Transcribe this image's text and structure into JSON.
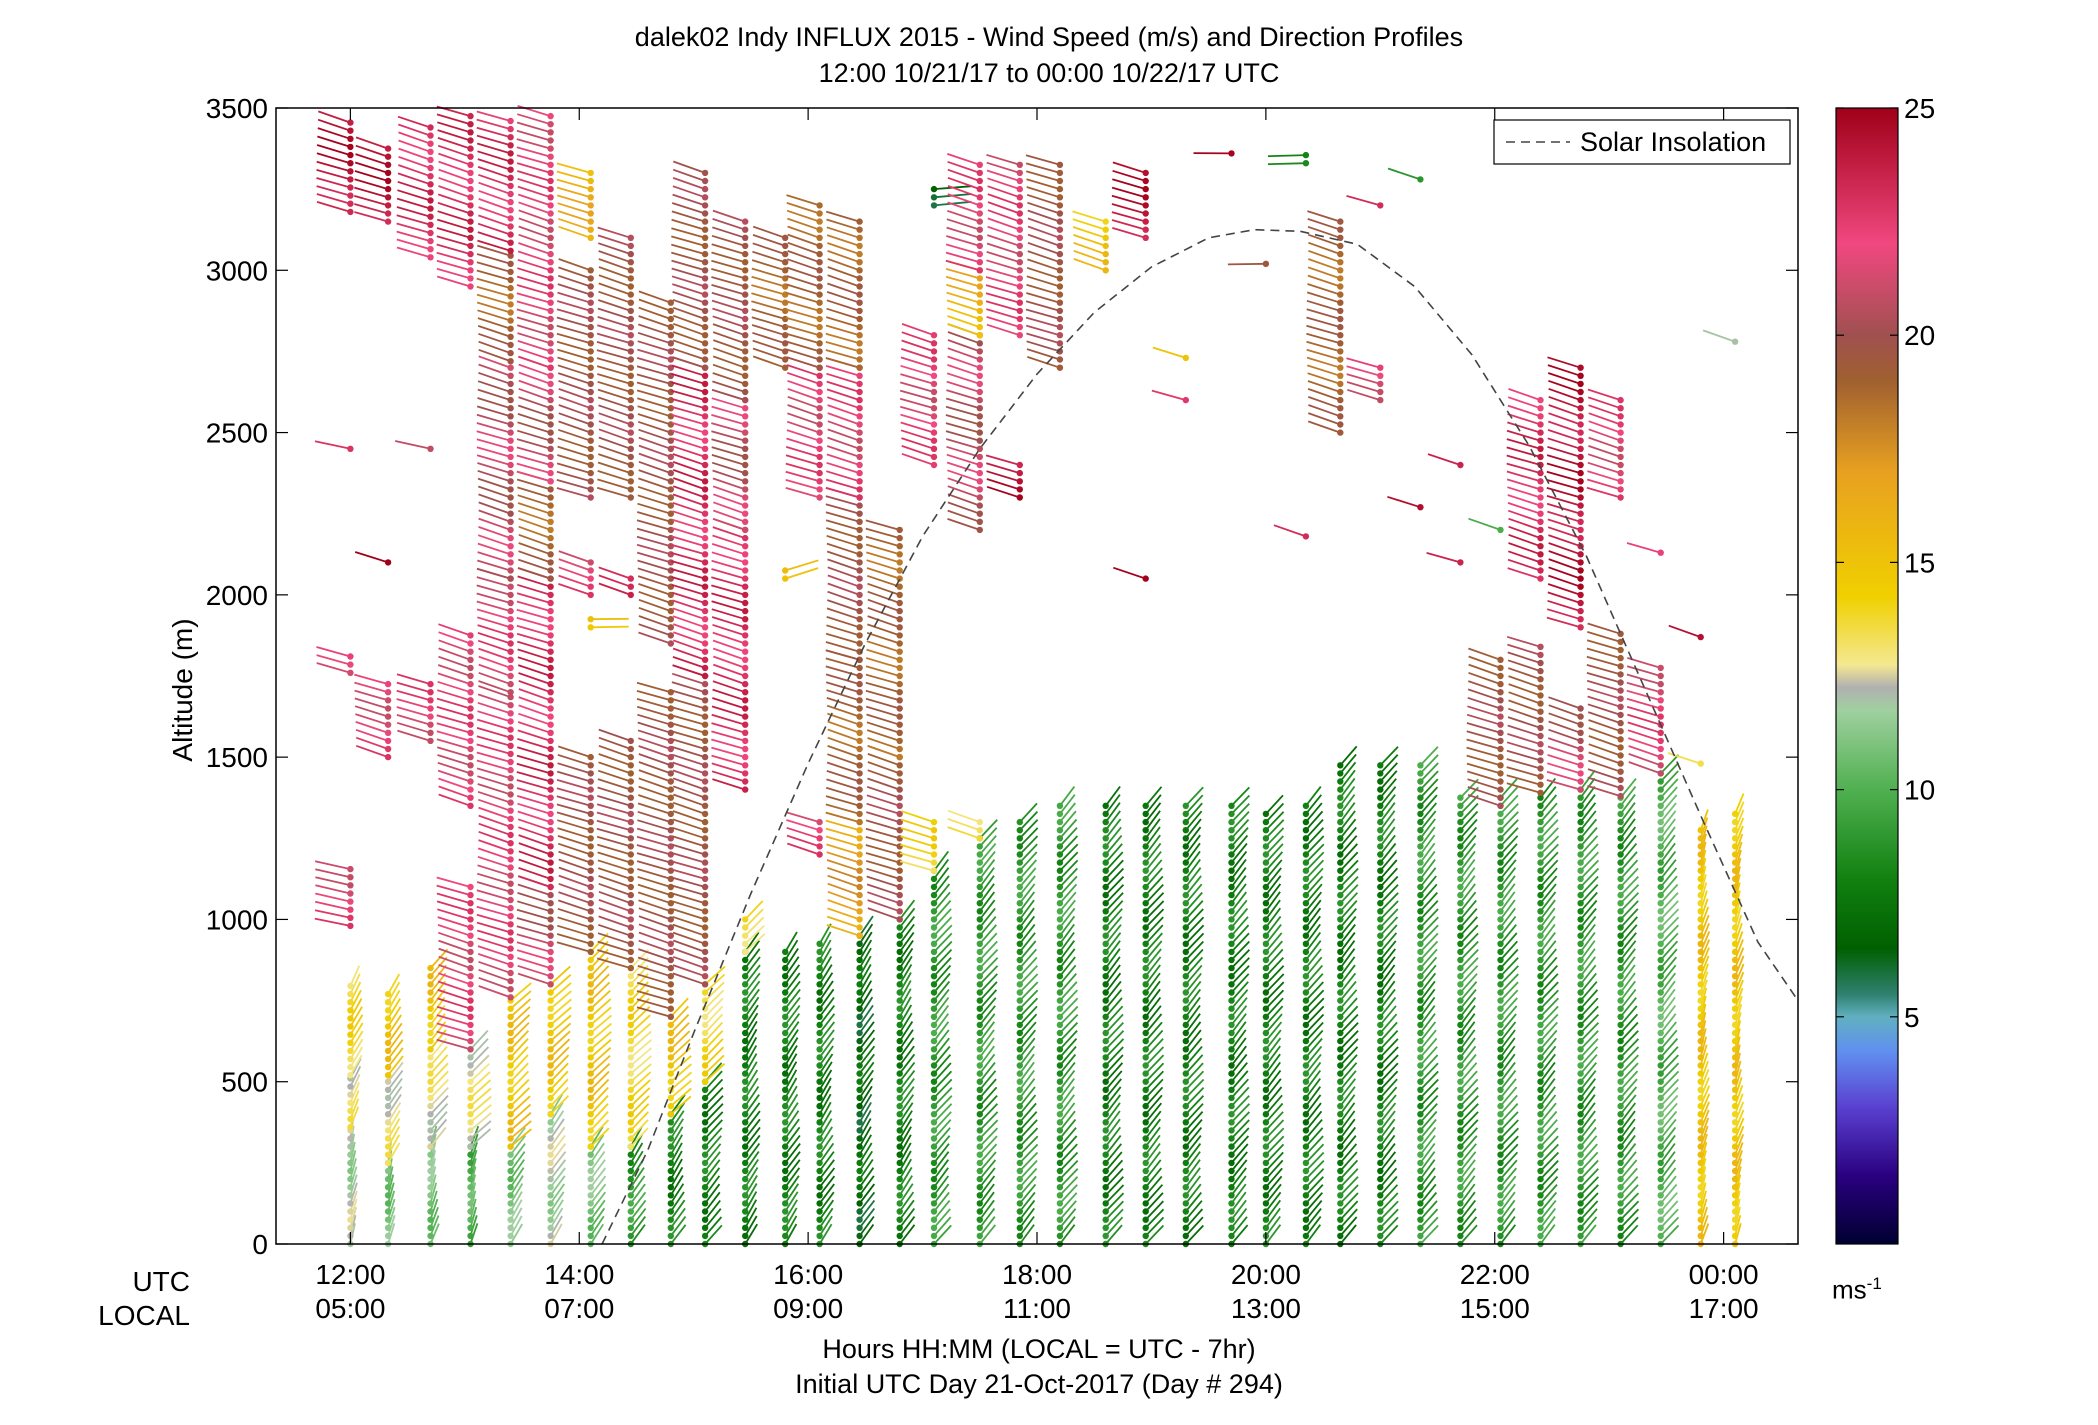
{
  "title_line1": "dalek02 Indy INFLUX 2015 - Wind Speed (m/s) and Direction Profiles",
  "title_line2": "12:00 10/21/17 to 00:00 10/22/17  UTC",
  "row_label_utc": "UTC",
  "row_label_local": "LOCAL",
  "xlabel_line1": "Hours HH:MM  (LOCAL = UTC - 7hr)",
  "xlabel_line2": "Initial UTC Day 21-Oct-2017 (Day # 294)",
  "colorbar_unit_base": "ms",
  "colorbar_unit_exp": "-1",
  "chart_data": {
    "type": "scatter",
    "subtype": "wind-barb-profile",
    "ylabel": "Altitude (m)",
    "ylim": [
      0,
      3500
    ],
    "yticks": [
      0,
      500,
      1000,
      1500,
      2000,
      2500,
      3000,
      3500
    ],
    "xlim_hours": [
      11.35,
      24.65
    ],
    "xticks_utc_hours": [
      12,
      14,
      16,
      18,
      20,
      22,
      24
    ],
    "xtick_labels_utc": [
      "12:00",
      "14:00",
      "16:00",
      "18:00",
      "20:00",
      "22:00",
      "00:00"
    ],
    "xtick_labels_local": [
      "05:00",
      "07:00",
      "09:00",
      "11:00",
      "13:00",
      "15:00",
      "17:00"
    ],
    "grid": false,
    "legend": {
      "entries": [
        "Solar Insolation"
      ],
      "placement": "top-right",
      "style": "dashed"
    },
    "colorbar": {
      "min": 0,
      "max": 25,
      "ticks": [
        5,
        10,
        15,
        20,
        25
      ]
    },
    "solar_insolation": {
      "x": [
        14.2,
        14.6,
        15.0,
        15.5,
        16.0,
        16.5,
        17.0,
        17.5,
        18.0,
        18.5,
        19.0,
        19.5,
        19.9,
        20.3,
        20.8,
        21.3,
        21.8,
        22.3,
        22.8,
        23.3,
        23.8,
        24.3,
        24.65
      ],
      "y": [
        0,
        290,
        650,
        1080,
        1480,
        1850,
        2180,
        2450,
        2680,
        2870,
        3010,
        3100,
        3125,
        3120,
        3080,
        2950,
        2740,
        2460,
        2120,
        1720,
        1320,
        930,
        750
      ]
    },
    "profiles": [
      {
        "t": 12.0,
        "top": 1170,
        "segs": [
          [
            0,
            12,
            7,
            360
          ],
          [
            360,
            13,
            15,
            520
          ],
          [
            520,
            14,
            16,
            800
          ],
          [
            980,
            22,
            290,
            1170
          ],
          [
            1760,
            22,
            300,
            1820
          ],
          [
            2450,
            22,
            290,
            2460
          ],
          [
            3180,
            24,
            300,
            3470
          ]
        ]
      },
      {
        "t": 12.33,
        "top": 790,
        "segs": [
          [
            0,
            11,
            7,
            250
          ],
          [
            250,
            13,
            20,
            520
          ],
          [
            520,
            15,
            20,
            790
          ],
          [
            1500,
            22,
            300,
            1740
          ],
          [
            2100,
            25,
            300,
            2120
          ],
          [
            3150,
            24,
            300,
            3380
          ]
        ]
      },
      {
        "t": 12.7,
        "top": 860,
        "segs": [
          [
            0,
            11,
            10,
            300
          ],
          [
            300,
            13,
            25,
            600
          ],
          [
            600,
            15,
            25,
            860
          ],
          [
            1550,
            22,
            300,
            1740
          ],
          [
            2450,
            22,
            290,
            2460
          ],
          [
            3040,
            23,
            300,
            3460
          ]
        ]
      },
      {
        "t": 13.05,
        "top": 1120,
        "segs": [
          [
            0,
            10,
            10,
            300
          ],
          [
            300,
            13,
            30,
            600
          ],
          [
            600,
            22,
            300,
            1120
          ],
          [
            1350,
            22,
            300,
            1880
          ],
          [
            2950,
            23,
            300,
            3480
          ]
        ]
      },
      {
        "t": 13.4,
        "top": 3480,
        "segs": [
          [
            0,
            11,
            20,
            300
          ],
          [
            300,
            15,
            30,
            760
          ],
          [
            760,
            22,
            300,
            1700
          ],
          [
            1700,
            22,
            300,
            2050
          ],
          [
            2050,
            21,
            300,
            2720
          ],
          [
            2720,
            19,
            300,
            3060
          ],
          [
            3060,
            23,
            300,
            3480
          ]
        ]
      },
      {
        "t": 13.75,
        "top": 3480,
        "segs": [
          [
            0,
            12,
            20,
            400
          ],
          [
            400,
            15,
            30,
            800
          ],
          [
            800,
            21,
            300,
            1100
          ],
          [
            1100,
            23,
            300,
            2050
          ],
          [
            2050,
            19,
            300,
            2350
          ],
          [
            2350,
            21,
            300,
            2700
          ],
          [
            2700,
            22,
            300,
            3480
          ]
        ]
      },
      {
        "t": 14.1,
        "top": 3320,
        "segs": [
          [
            0,
            11,
            20,
            300
          ],
          [
            300,
            15,
            30,
            900
          ],
          [
            900,
            20,
            300,
            1500
          ],
          [
            1900,
            15,
            90,
            1930
          ],
          [
            2000,
            22,
            300,
            2120
          ],
          [
            2300,
            20,
            300,
            3020
          ],
          [
            3100,
            16,
            300,
            3320
          ]
        ]
      },
      {
        "t": 14.45,
        "top": 3120,
        "segs": [
          [
            0,
            9,
            20,
            300
          ],
          [
            300,
            14,
            30,
            850
          ],
          [
            850,
            20,
            300,
            1550
          ],
          [
            2000,
            24,
            300,
            2050
          ],
          [
            2300,
            20,
            300,
            3120
          ]
        ]
      },
      {
        "t": 14.8,
        "top": 2900,
        "segs": [
          [
            0,
            8,
            20,
            400
          ],
          [
            400,
            15,
            30,
            700
          ],
          [
            700,
            20,
            300,
            1700
          ],
          [
            1850,
            20,
            300,
            2900
          ]
        ]
      },
      {
        "t": 15.1,
        "top": 3300,
        "segs": [
          [
            0,
            8,
            25,
            500
          ],
          [
            500,
            14,
            30,
            800
          ],
          [
            800,
            20,
            300,
            1750
          ],
          [
            1750,
            23,
            300,
            2700
          ],
          [
            2700,
            20,
            300,
            3300
          ]
        ]
      },
      {
        "t": 15.45,
        "top": 3150,
        "segs": [
          [
            0,
            8,
            20,
            900
          ],
          [
            900,
            14,
            30,
            1000
          ],
          [
            1400,
            23,
            300,
            2200
          ],
          [
            2200,
            21,
            300,
            2600
          ],
          [
            2600,
            20,
            300,
            3150
          ]
        ]
      },
      {
        "t": 15.8,
        "top": 3100,
        "segs": [
          [
            0,
            8,
            20,
            900
          ],
          [
            2050,
            16,
            60,
            2090
          ],
          [
            2700,
            19,
            300,
            3100
          ]
        ]
      },
      {
        "t": 16.1,
        "top": 3200,
        "segs": [
          [
            0,
            8,
            20,
            940
          ],
          [
            1200,
            22,
            300,
            1300
          ],
          [
            2300,
            22,
            300,
            2700
          ],
          [
            2700,
            19,
            300,
            3200
          ]
        ]
      },
      {
        "t": 16.45,
        "top": 3150,
        "segs": [
          [
            0,
            7,
            20,
            950
          ],
          [
            950,
            17,
            300,
            1300
          ],
          [
            1300,
            19,
            300,
            1800
          ],
          [
            1800,
            20,
            300,
            2300
          ],
          [
            2300,
            22,
            300,
            2700
          ],
          [
            2700,
            19,
            300,
            3150
          ]
        ]
      },
      {
        "t": 16.8,
        "top": 2200,
        "segs": [
          [
            0,
            8,
            20,
            1000
          ],
          [
            1000,
            20,
            300,
            1500
          ],
          [
            1500,
            19,
            300,
            2200
          ]
        ]
      },
      {
        "t": 17.1,
        "top": 3250,
        "segs": [
          [
            0,
            9,
            25,
            1150
          ],
          [
            1150,
            14,
            300,
            1300
          ],
          [
            2400,
            22,
            300,
            2800
          ],
          [
            3200,
            7,
            80,
            3250
          ]
        ]
      },
      {
        "t": 17.5,
        "top": 3330,
        "segs": [
          [
            0,
            9,
            25,
            1250
          ],
          [
            1250,
            14,
            300,
            1300
          ],
          [
            2200,
            21,
            300,
            2800
          ],
          [
            2800,
            16,
            300,
            3000
          ],
          [
            3000,
            22,
            300,
            3330
          ]
        ]
      },
      {
        "t": 17.85,
        "top": 3330,
        "segs": [
          [
            0,
            9,
            25,
            1300
          ],
          [
            2300,
            24,
            300,
            2400
          ],
          [
            2800,
            22,
            300,
            3330
          ]
        ]
      },
      {
        "t": 18.2,
        "top": 3330,
        "segs": [
          [
            0,
            9,
            25,
            1360
          ],
          [
            2700,
            20,
            300,
            3330
          ]
        ]
      },
      {
        "t": 18.6,
        "top": 3170,
        "segs": [
          [
            0,
            8,
            25,
            1370
          ],
          [
            3000,
            15,
            300,
            3170
          ]
        ]
      },
      {
        "t": 18.95,
        "top": 3320,
        "segs": [
          [
            0,
            8,
            25,
            1370
          ],
          [
            2050,
            24,
            300,
            2060
          ],
          [
            3100,
            24,
            300,
            3320
          ]
        ]
      },
      {
        "t": 19.3,
        "top": 2730,
        "segs": [
          [
            0,
            8,
            25,
            1370
          ],
          [
            2600,
            22,
            300,
            2600
          ],
          [
            2730,
            16,
            300,
            2730
          ]
        ]
      },
      {
        "t": 19.7,
        "top": 3360,
        "segs": [
          [
            0,
            8,
            25,
            1360
          ],
          [
            3360,
            24,
            270,
            3370
          ]
        ]
      },
      {
        "t": 20.0,
        "top": 3020,
        "segs": [
          [
            0,
            8,
            25,
            1340
          ],
          [
            3020,
            19,
            270,
            3030
          ]
        ]
      },
      {
        "t": 20.35,
        "top": 3360,
        "segs": [
          [
            0,
            8,
            25,
            1360
          ],
          [
            2180,
            24,
            300,
            2180
          ],
          [
            3330,
            9,
            270,
            3370
          ]
        ]
      },
      {
        "t": 20.65,
        "top": 3150,
        "segs": [
          [
            0,
            8,
            25,
            1480
          ],
          [
            2500,
            19,
            300,
            3150
          ]
        ]
      },
      {
        "t": 21.0,
        "top": 3200,
        "segs": [
          [
            0,
            8,
            25,
            1480
          ],
          [
            2600,
            22,
            300,
            2700
          ],
          [
            3200,
            24,
            300,
            3200
          ]
        ]
      },
      {
        "t": 21.35,
        "top": 3280,
        "segs": [
          [
            0,
            9,
            25,
            1480
          ],
          [
            2270,
            25,
            300,
            2270
          ],
          [
            3280,
            8,
            300,
            3280
          ]
        ]
      },
      {
        "t": 21.7,
        "top": 2400,
        "segs": [
          [
            0,
            9,
            25,
            1380
          ],
          [
            2100,
            24,
            300,
            2100
          ],
          [
            2400,
            24,
            300,
            2400
          ]
        ]
      },
      {
        "t": 22.05,
        "top": 2200,
        "segs": [
          [
            0,
            9,
            25,
            1380
          ],
          [
            1350,
            20,
            300,
            1800
          ],
          [
            2200,
            9,
            300,
            2200
          ]
        ]
      },
      {
        "t": 22.4,
        "top": 2600,
        "segs": [
          [
            0,
            9,
            25,
            1390
          ],
          [
            1390,
            20,
            300,
            1850
          ],
          [
            2050,
            23,
            300,
            2600
          ]
        ]
      },
      {
        "t": 22.75,
        "top": 2700,
        "segs": [
          [
            0,
            9,
            25,
            1400
          ],
          [
            1400,
            21,
            300,
            1650
          ],
          [
            1900,
            24,
            300,
            2700
          ]
        ]
      },
      {
        "t": 23.1,
        "top": 2600,
        "segs": [
          [
            0,
            9,
            25,
            1380
          ],
          [
            1380,
            20,
            300,
            1900
          ],
          [
            2300,
            22,
            300,
            2600
          ]
        ]
      },
      {
        "t": 23.45,
        "top": 2130,
        "segs": [
          [
            0,
            10,
            25,
            1450
          ],
          [
            1450,
            22,
            300,
            1780
          ],
          [
            2130,
            22,
            300,
            2130
          ]
        ]
      },
      {
        "t": 23.8,
        "top": 1870,
        "segs": [
          [
            0,
            15,
            10,
            1290
          ],
          [
            1480,
            13,
            300,
            1480
          ],
          [
            1870,
            24,
            300,
            1870
          ]
        ]
      },
      {
        "t": 24.1,
        "top": 1330,
        "segs": [
          [
            0,
            15,
            10,
            1330
          ],
          [
            2780,
            13,
            300,
            2780
          ]
        ]
      }
    ]
  }
}
